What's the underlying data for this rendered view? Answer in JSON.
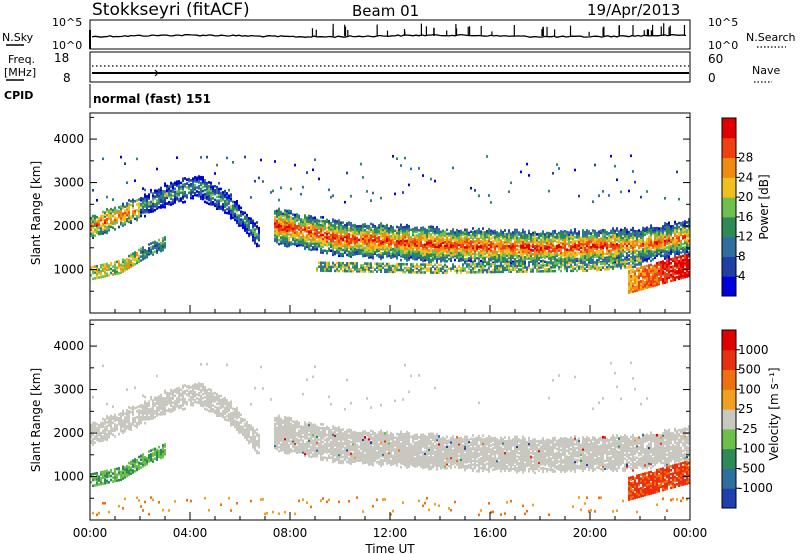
{
  "header": {
    "station": "Stokkseyri (fitACF)",
    "beam": "Beam 01",
    "date": "19/Apr/2013"
  },
  "noise_panel": {
    "left_label": "N.Sky",
    "right_label": "N.Search",
    "left_ticks": [
      "10^5",
      "10^0"
    ],
    "right_ticks": [
      "10^5",
      "10^0"
    ]
  },
  "freq_panel": {
    "left_label_line1": "Freq.",
    "left_label_line2": "[MHz]",
    "right_label": "Nave",
    "left_ticks": [
      "18",
      "8"
    ],
    "right_ticks": [
      "60",
      "0"
    ]
  },
  "cpid_panel": {
    "label": "CPID",
    "value": "normal (fast) 151"
  },
  "x_axis": {
    "label": "Time UT",
    "ticks": [
      "00:00",
      "04:00",
      "08:00",
      "12:00",
      "16:00",
      "20:00",
      "00:00"
    ]
  },
  "chart_data": [
    {
      "type": "heatmap",
      "name": "power",
      "ylabel": "Slant Range [km]",
      "yticks": [
        "1000",
        "2000",
        "3000",
        "4000"
      ],
      "ylim": [
        0,
        4600
      ],
      "xlim_hours": [
        0,
        24
      ],
      "colorbar": {
        "label": "Power [dB]",
        "ticks": [
          "4",
          "8",
          "12",
          "16",
          "20",
          "24",
          "28"
        ],
        "colors": [
          "#0000dd",
          "#1f3fa6",
          "#2f6f9f",
          "#2e8b57",
          "#6fbf4f",
          "#f0c020",
          "#f08a10",
          "#f04010",
          "#e00000"
        ]
      },
      "bands": [
        {
          "desc": "main band",
          "t": [
            7.3,
            10,
            14,
            18,
            22,
            24
          ],
          "r": [
            2000,
            1700,
            1550,
            1480,
            1550,
            1750
          ]
        },
        {
          "desc": "early band",
          "t": [
            0,
            1.5,
            3,
            4.3,
            5.5,
            6.8
          ],
          "r": [
            1950,
            2300,
            2700,
            2900,
            2500,
            1700
          ]
        },
        {
          "desc": "low band",
          "t": [
            0,
            1.2,
            2.2,
            3
          ],
          "r": [
            900,
            1050,
            1400,
            1600
          ]
        },
        {
          "desc": "lower band",
          "t": [
            9,
            14,
            20,
            22
          ],
          "r": [
            1050,
            1000,
            1050,
            1150
          ]
        },
        {
          "desc": "bottom-right enhancement",
          "t": [
            21.5,
            24
          ],
          "r": [
            800,
            1200
          ]
        }
      ]
    },
    {
      "type": "heatmap",
      "name": "velocity",
      "ylabel": "Slant Range [km]",
      "yticks": [
        "1000",
        "2000",
        "3000",
        "4000"
      ],
      "ylim": [
        0,
        4600
      ],
      "xlim_hours": [
        0,
        24
      ],
      "colorbar": {
        "label": "Velocity [m s⁻¹]",
        "ticks": [
          "1000",
          "500",
          "100",
          "25",
          "-25",
          "-100",
          "-500",
          "-1000"
        ],
        "colors": [
          "#2040b0",
          "#2f6f9f",
          "#2e8b57",
          "#6cc04a",
          "#c8c8c0",
          "#f0a020",
          "#f07010",
          "#e83010",
          "#e00000"
        ]
      }
    }
  ]
}
